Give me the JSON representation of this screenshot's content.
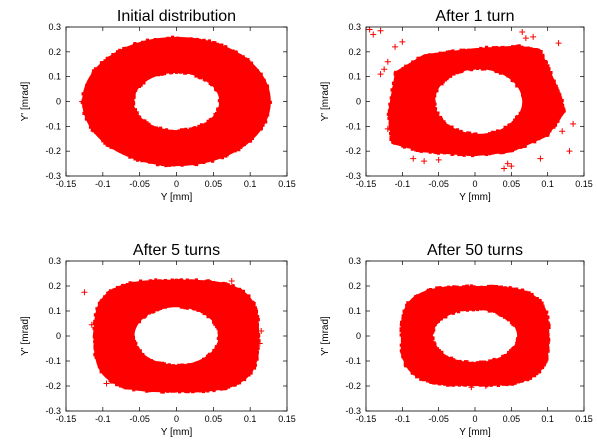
{
  "colors": {
    "marker": "#ff0000",
    "axes": "#000000",
    "background": "#ffffff"
  },
  "chart_data": [
    {
      "type": "scatter",
      "title": "Initial distribution",
      "xlabel": "Y [mm]",
      "ylabel": "Y' [mrad]",
      "xlim": [
        -0.15,
        0.15
      ],
      "ylim": [
        -0.3,
        0.3
      ],
      "xticks": [
        "-0.15",
        "-0.1",
        "-0.05",
        "0",
        "0.05",
        "0.1",
        "0.15"
      ],
      "yticks": [
        "-0.3",
        "-0.2",
        "-0.1",
        "0",
        "0.1",
        "0.2",
        "0.3"
      ],
      "grid": false,
      "series": [
        {
          "marker": "+",
          "color": "#ff0000",
          "ring": {
            "center": [
              0,
              0
            ],
            "outer_radii": [
              0.128,
              0.26
            ],
            "inner_radii": [
              0.058,
              0.115
            ],
            "shape": "ellipse"
          },
          "outliers": [
            [
              -0.128,
              0.0
            ],
            [
              0.125,
              0.0
            ],
            [
              -0.11,
              0.0
            ],
            [
              0.11,
              0.0
            ]
          ]
        }
      ]
    },
    {
      "type": "scatter",
      "title": "After 1 turn",
      "xlabel": "Y [mm]",
      "ylabel": "Y' [mrad]",
      "xlim": [
        -0.15,
        0.15
      ],
      "ylim": [
        -0.3,
        0.3
      ],
      "xticks": [
        "-0.15",
        "-0.1",
        "-0.05",
        "0",
        "0.05",
        "0.1",
        "0.15"
      ],
      "yticks": [
        "-0.3",
        "-0.2",
        "-0.1",
        "0",
        "0.1",
        "0.2",
        "0.3"
      ],
      "grid": false,
      "series": [
        {
          "marker": "+",
          "color": "#ff0000",
          "hull": [
            [
              -0.11,
              0.12
            ],
            [
              -0.07,
              0.19
            ],
            [
              0.0,
              0.215
            ],
            [
              0.06,
              0.225
            ],
            [
              0.09,
              0.21
            ],
            [
              0.115,
              0.05
            ],
            [
              0.125,
              -0.04
            ],
            [
              0.1,
              -0.14
            ],
            [
              0.05,
              -0.205
            ],
            [
              0.0,
              -0.22
            ],
            [
              -0.07,
              -0.205
            ],
            [
              -0.115,
              -0.17
            ],
            [
              -0.12,
              -0.05
            ]
          ],
          "hole": {
            "center": [
              0.005,
              0.0
            ],
            "radii": [
              0.06,
              0.13
            ]
          },
          "outliers": [
            [
              -0.145,
              0.29
            ],
            [
              -0.14,
              0.27
            ],
            [
              -0.13,
              0.285
            ],
            [
              -0.12,
              0.16
            ],
            [
              -0.125,
              0.13
            ],
            [
              -0.13,
              0.11
            ],
            [
              -0.1,
              0.24
            ],
            [
              -0.11,
              0.22
            ],
            [
              0.065,
              0.28
            ],
            [
              0.07,
              0.255
            ],
            [
              0.08,
              0.26
            ],
            [
              0.115,
              0.235
            ],
            [
              0.13,
              -0.2
            ],
            [
              0.135,
              -0.09
            ],
            [
              0.12,
              -0.12
            ],
            [
              0.045,
              -0.25
            ],
            [
              0.05,
              -0.26
            ],
            [
              0.04,
              -0.27
            ],
            [
              -0.07,
              -0.24
            ],
            [
              -0.085,
              -0.23
            ],
            [
              -0.05,
              -0.235
            ],
            [
              -0.12,
              -0.11
            ],
            [
              0.09,
              -0.23
            ]
          ]
        }
      ]
    },
    {
      "type": "scatter",
      "title": "After 5 turns",
      "xlabel": "Y [mm]",
      "ylabel": "Y' [mrad]",
      "xlim": [
        -0.15,
        0.15
      ],
      "ylim": [
        -0.3,
        0.3
      ],
      "xticks": [
        "-0.15",
        "-0.1",
        "-0.05",
        "0",
        "0.05",
        "0.1",
        "0.15"
      ],
      "yticks": [
        "-0.3",
        "-0.2",
        "-0.1",
        "0",
        "0.1",
        "0.2",
        "0.3"
      ],
      "grid": false,
      "series": [
        {
          "marker": "+",
          "color": "#ff0000",
          "ring": {
            "center": [
              0.0,
              0.0
            ],
            "outer_radii": [
              0.112,
              0.225
            ],
            "inner_radii": [
              0.057,
              0.115
            ],
            "shape": "superellipse"
          },
          "outliers": [
            [
              -0.125,
              0.175
            ],
            [
              -0.115,
              0.045
            ],
            [
              -0.095,
              -0.19
            ],
            [
              -0.085,
              -0.15
            ],
            [
              0.06,
              -0.2
            ],
            [
              0.07,
              0.2
            ],
            [
              0.075,
              0.22
            ],
            [
              0.115,
              0.02
            ],
            [
              0.113,
              -0.03
            ]
          ]
        }
      ]
    },
    {
      "type": "scatter",
      "title": "After 50 turns",
      "xlabel": "Y [mm]",
      "ylabel": "Y' [mrad]",
      "xlim": [
        -0.15,
        0.15
      ],
      "ylim": [
        -0.3,
        0.3
      ],
      "xticks": [
        "-0.15",
        "-0.1",
        "-0.05",
        "0",
        "0.05",
        "0.1",
        "0.15"
      ],
      "yticks": [
        "-0.3",
        "-0.2",
        "-0.1",
        "0",
        "0.1",
        "0.2",
        "0.3"
      ],
      "grid": false,
      "series": [
        {
          "marker": "+",
          "color": "#ff0000",
          "ring": {
            "center": [
              0.0,
              0.0
            ],
            "outer_radii": [
              0.102,
              0.2
            ],
            "inner_radii": [
              0.058,
              0.105
            ],
            "shape": "superellipse"
          },
          "outliers": [
            [
              0.1,
              0.03
            ],
            [
              0.1,
              0.045
            ],
            [
              -0.095,
              0.0
            ],
            [
              0.095,
              0.0
            ],
            [
              -0.005,
              -0.205
            ],
            [
              0.015,
              -0.2
            ]
          ]
        }
      ]
    }
  ]
}
